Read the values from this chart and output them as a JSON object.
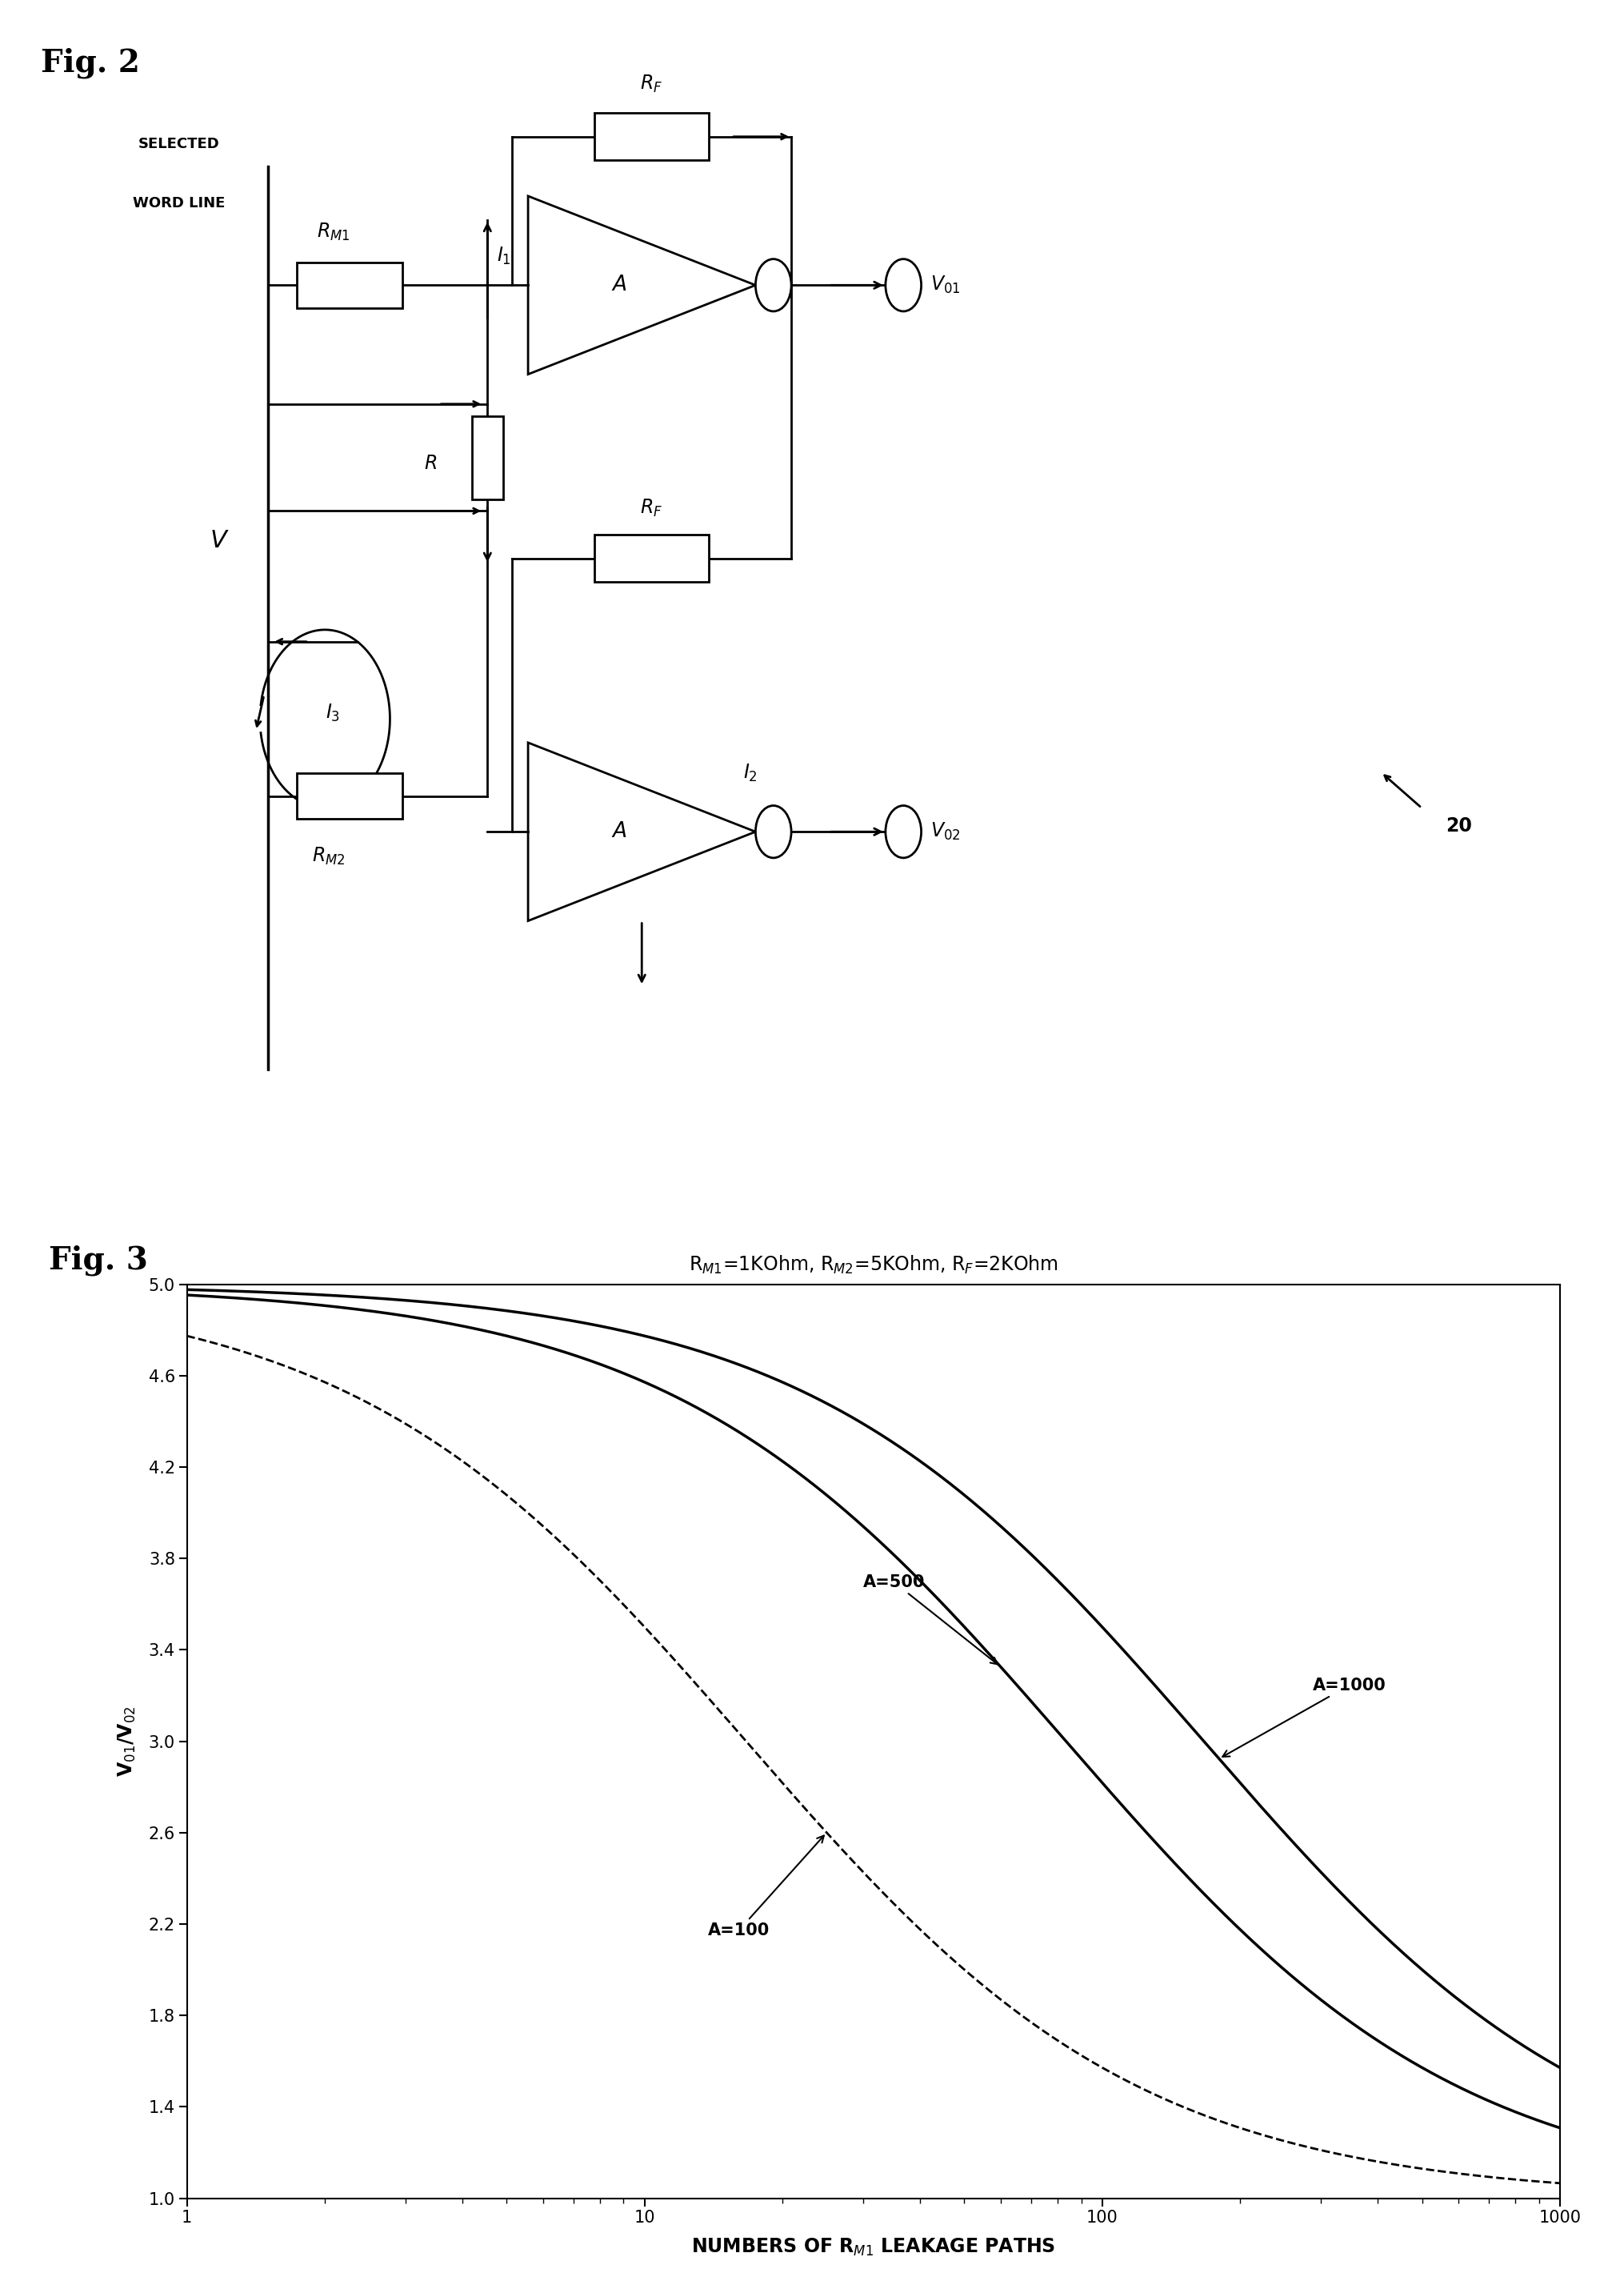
{
  "fig2_label": "Fig. 2",
  "fig3_label": "Fig. 3",
  "fig3_title": "R$_{M1}$=1KOhm, R$_{M2}$=5KOhm, R$_F$=2KOhm",
  "xlabel": "NUMBERS OF R$_{M1}$ LEAKAGE PATHS",
  "ylabel": "V$_{01}$/V$_{02}$",
  "ylim": [
    1.0,
    5.0
  ],
  "xlim": [
    1,
    1000
  ],
  "yticks": [
    1.0,
    1.4,
    1.8,
    2.2,
    2.6,
    3.0,
    3.4,
    3.8,
    4.2,
    4.6,
    5.0
  ],
  "background_color": "#ffffff",
  "RM1": 1000,
  "RM2": 5000,
  "RF": 2000,
  "A_values": [
    100,
    500,
    1000
  ],
  "label_A100": "A=100",
  "label_A500": "A=500",
  "label_A1000": "A=1000",
  "ref_number": "20",
  "selected_word_line": "SELECTED\nWORD LINE"
}
